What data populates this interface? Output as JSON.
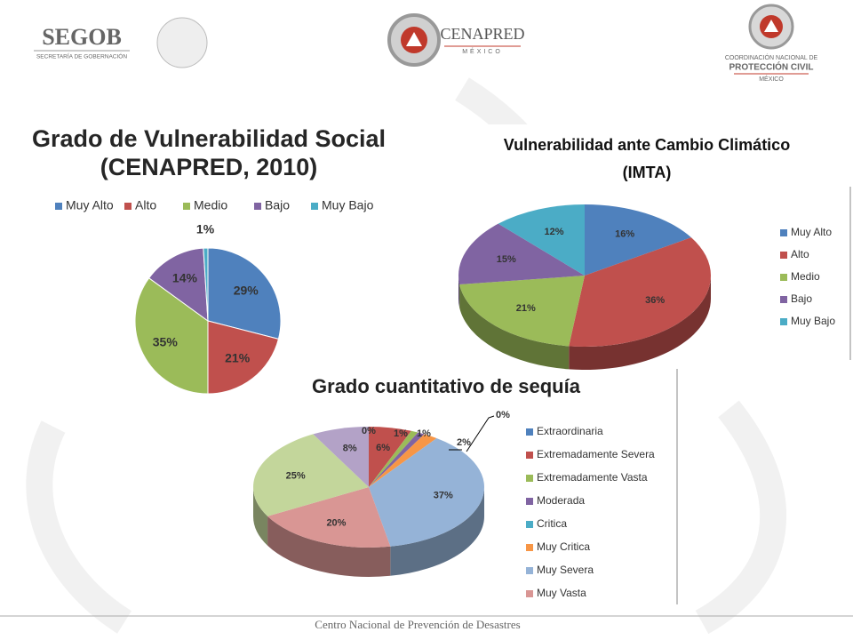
{
  "header": {
    "segob": "SEGOB",
    "segob_sub": "SECRETARÍA DE GOBERNACIÓN",
    "cenapred": "CENAPRED",
    "cenapred_sub": "MÉXICO",
    "pc_line1": "COORDINACIÓN NACIONAL DE",
    "pc_line2": "PROTECCIÓN CIVIL",
    "pc_line3": "MÉXICO"
  },
  "footer": "Centro Nacional de Prevención de Desastres",
  "chart_data": [
    {
      "type": "pie",
      "title": "Grado de Vulnerabilidad Social",
      "subtitle": "(CENAPRED, 2010)",
      "legend": "top",
      "categories": [
        "Muy Alto",
        "Alto",
        "Medio",
        "Bajo",
        "Muy Bajo"
      ],
      "values": [
        29,
        21,
        35,
        14,
        1
      ],
      "value_labels": [
        "29%",
        "21%",
        "35%",
        "14%",
        "1%"
      ],
      "colors": [
        "#4f81bd",
        "#c0504d",
        "#9bbb59",
        "#8064a2",
        "#4bacc6"
      ]
    },
    {
      "type": "pie",
      "title": "Vulnerabilidad ante Cambio Climático",
      "subtitle": "(IMTA)",
      "legend": "right",
      "categories": [
        "Muy Alto",
        "Alto",
        "Medio",
        "Bajo",
        "Muy Bajo"
      ],
      "values": [
        16,
        36,
        21,
        15,
        12
      ],
      "value_labels": [
        "16%",
        "36%",
        "21%",
        "15%",
        "12%"
      ],
      "colors": [
        "#4f81bd",
        "#c0504d",
        "#9bbb59",
        "#8064a2",
        "#4bacc6"
      ]
    },
    {
      "type": "pie",
      "title": "Grado cuantitativo de sequía",
      "legend": "right",
      "categories": [
        "Extraordinaria",
        "Extremadamente Severa",
        "Extremadamente Vasta",
        "Moderada",
        "Critica",
        "Muy Critica",
        "Muy Severa",
        "Muy Vasta",
        null,
        null
      ],
      "values": [
        0,
        6,
        1,
        1,
        0,
        2,
        37,
        20,
        25,
        8
      ],
      "value_labels": [
        "0%",
        "6%",
        "1%",
        "1%",
        "0%",
        "2%",
        "37%",
        "20%",
        "25%",
        "8%"
      ],
      "colors": [
        "#4f81bd",
        "#c0504d",
        "#9bbb59",
        "#8064a2",
        "#4bacc6",
        "#f79646",
        "#95b3d7",
        "#d99694",
        "#c3d69b",
        "#b3a2c7"
      ]
    }
  ]
}
